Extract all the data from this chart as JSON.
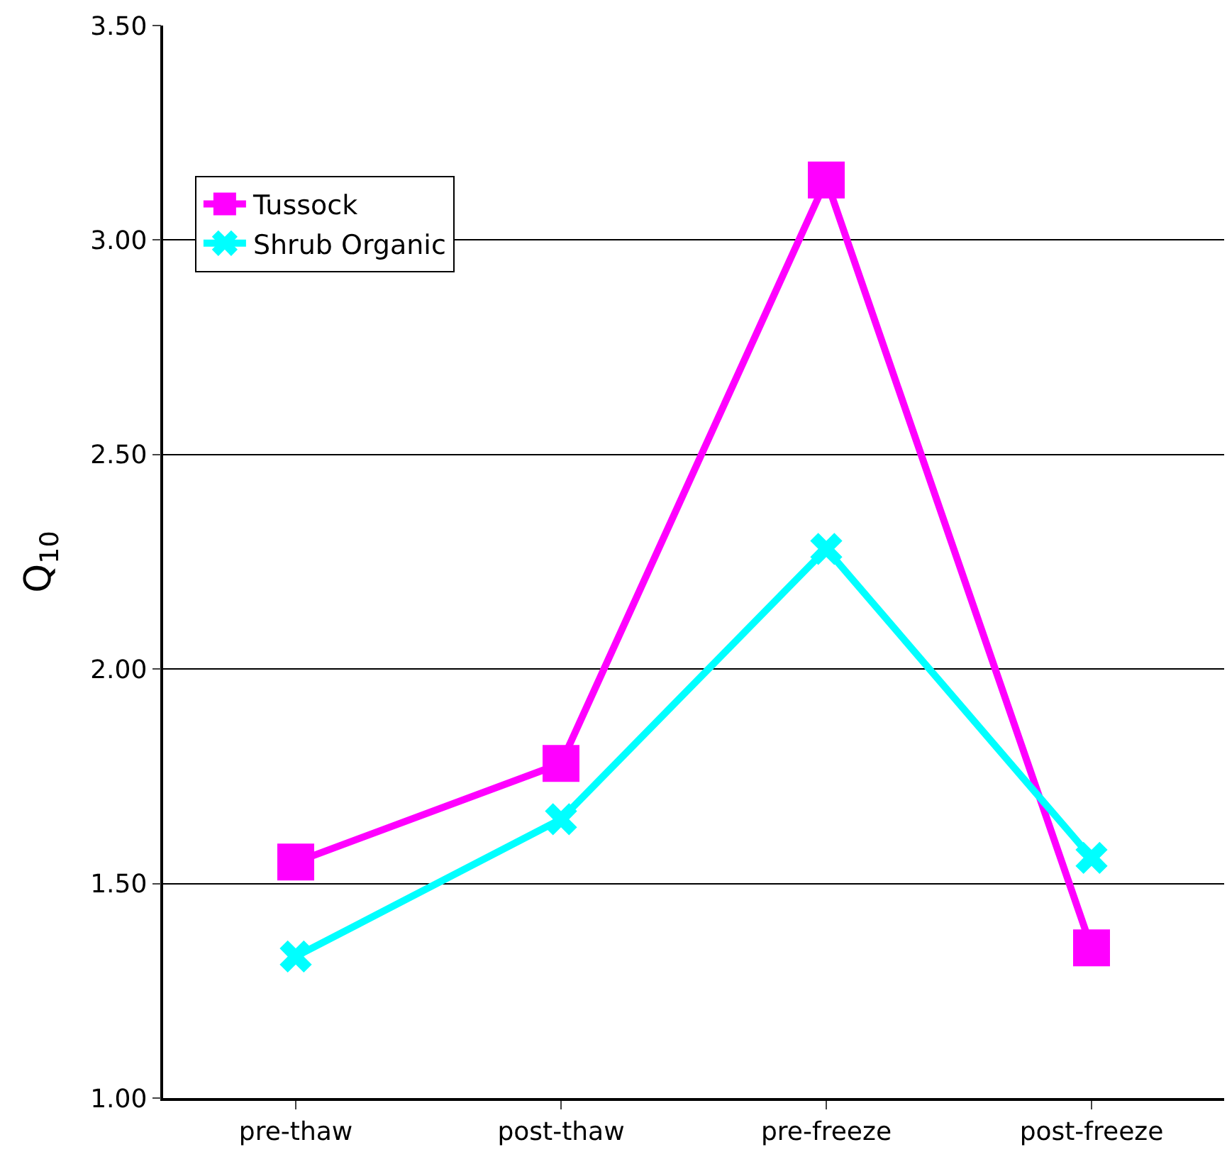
{
  "chart_data": {
    "type": "line",
    "ylabel": "Q$_{10}$",
    "categories": [
      "pre-thaw",
      "post-thaw",
      "pre-freeze",
      "post-freeze"
    ],
    "series": [
      {
        "name": "Tussock",
        "color": "#ff00ff",
        "marker": "square",
        "values": [
          1.55,
          1.78,
          3.14,
          1.35
        ]
      },
      {
        "name": "Shrub Organic",
        "color": "#00ffff",
        "marker": "cross",
        "values": [
          1.33,
          1.65,
          2.28,
          1.56
        ]
      }
    ],
    "ylim": [
      1.0,
      3.5
    ],
    "yticks": [
      {
        "value": 1.0,
        "label": "1.00"
      },
      {
        "value": 1.5,
        "label": "1.50"
      },
      {
        "value": 2.0,
        "label": "2.00"
      },
      {
        "value": 2.5,
        "label": "2.50"
      },
      {
        "value": 3.0,
        "label": "3.00"
      },
      {
        "value": 3.5,
        "label": "3.50"
      }
    ],
    "grid": "y",
    "legend": "top left",
    "line_style": "solid"
  }
}
